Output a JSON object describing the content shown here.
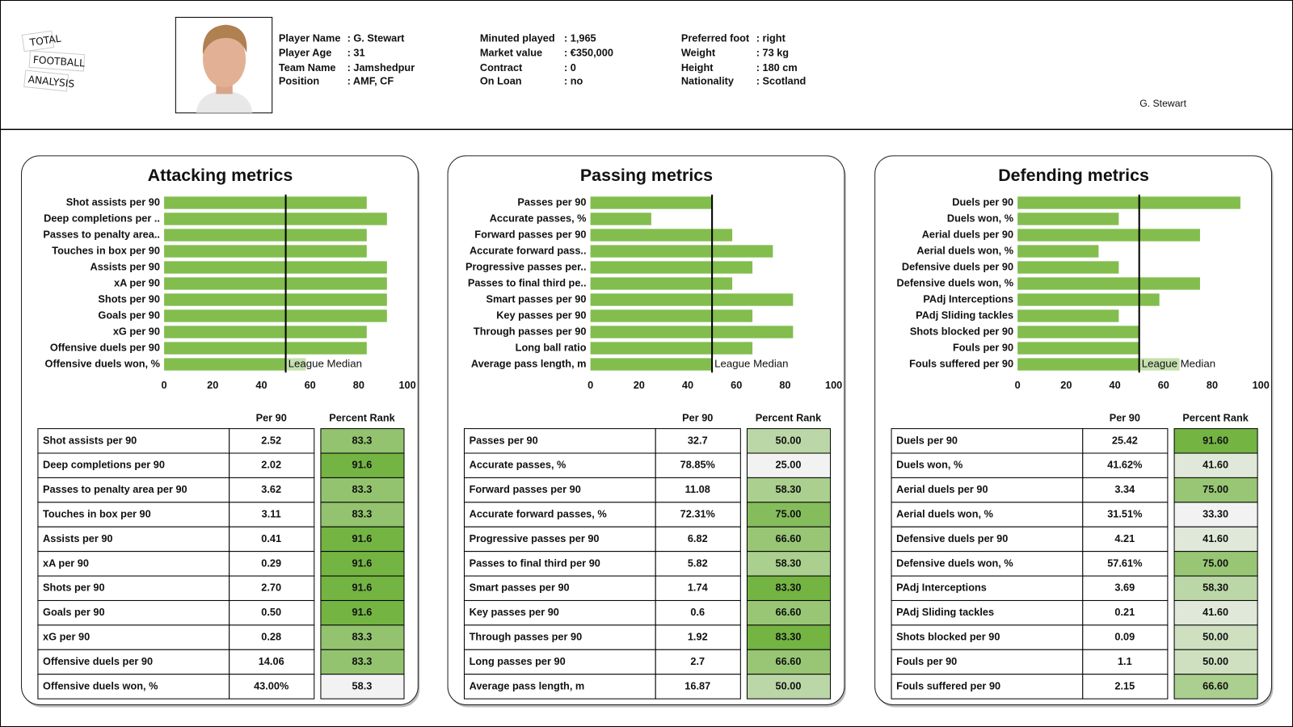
{
  "header": {
    "logo": [
      "TOTAL",
      "FOOTBALL",
      "ANALYSIS"
    ],
    "info": [
      [
        {
          "label": "Player Name",
          "value": ": G. Stewart"
        },
        {
          "label": "Player Age",
          "value": ": 31"
        },
        {
          "label": "Team Name",
          "value": ": Jamshedpur"
        },
        {
          "label": "Position",
          "value": ": AMF, CF"
        }
      ],
      [
        {
          "label": "Minuted played",
          "value": ": 1,965"
        },
        {
          "label": "Market value",
          "value": ": €350,000"
        },
        {
          "label": "Contract",
          "value": ": 0"
        },
        {
          "label": "On Loan",
          "value": ": no"
        }
      ],
      [
        {
          "label": "Preferred foot",
          "value": ": right"
        },
        {
          "label": "Weight",
          "value": ": 73 kg"
        },
        {
          "label": "Height",
          "value": ": 180 cm"
        },
        {
          "label": "Nationality",
          "value": ": Scotland"
        }
      ]
    ],
    "caption": "G. Stewart"
  },
  "chart_data": [
    {
      "type": "bar",
      "orientation": "horizontal",
      "title": "Attacking metrics",
      "color": "#82bd4e",
      "categories": [
        "Shot assists per 90",
        "Deep completions per ..",
        "Passes to penalty area..",
        "Touches in box per 90",
        "Assists per 90",
        "xA per 90",
        "Shots per 90",
        "Goals per 90",
        "xG per 90",
        "Offensive duels per 90",
        "Offensive duels won, %"
      ],
      "values": [
        83.3,
        91.6,
        83.3,
        83.3,
        91.6,
        91.6,
        91.6,
        91.6,
        83.3,
        83.3,
        58.3
      ],
      "xlim": [
        0,
        100
      ],
      "xticks": [
        0,
        20,
        40,
        60,
        80,
        100
      ],
      "median": {
        "value": 50,
        "label": "League Median"
      }
    },
    {
      "type": "bar",
      "orientation": "horizontal",
      "title": "Passing metrics",
      "color": "#82bd4e",
      "categories": [
        "Passes per 90",
        "Accurate passes, %",
        "Forward passes per 90",
        "Accurate forward pass..",
        "Progressive passes per..",
        "Passes to final third pe..",
        "Smart passes per 90",
        "Key passes per 90",
        "Through passes per 90",
        "Long ball ratio",
        "Average pass length, m"
      ],
      "values": [
        50,
        25,
        58.3,
        75,
        66.6,
        58.3,
        83.3,
        66.6,
        83.3,
        66.6,
        50
      ],
      "xlim": [
        0,
        100
      ],
      "xticks": [
        0,
        20,
        40,
        60,
        80,
        100
      ],
      "median": {
        "value": 50,
        "label": "League Median"
      }
    },
    {
      "type": "bar",
      "orientation": "horizontal",
      "title": "Defending metrics",
      "color": "#82bd4e",
      "categories": [
        "Duels per 90",
        "Duels won, %",
        "Aerial duels per 90",
        "Aerial duels won, %",
        "Defensive duels per 90",
        "Defensive duels won, %",
        "PAdj Interceptions",
        "PAdj Sliding tackles",
        "Shots blocked per 90",
        "Fouls per 90",
        "Fouls suffered per 90"
      ],
      "values": [
        91.6,
        41.6,
        75,
        33.3,
        41.6,
        75,
        58.3,
        41.6,
        50,
        50,
        66.6
      ],
      "xlim": [
        0,
        100
      ],
      "xticks": [
        0,
        20,
        40,
        60,
        80,
        100
      ],
      "median": {
        "value": 50,
        "label": "League Median"
      }
    }
  ],
  "tables": [
    {
      "columns": [
        "Per 90",
        "Percent Rank"
      ],
      "rows": [
        [
          "Shot assists per 90",
          "2.52",
          "83.3"
        ],
        [
          "Deep completions per 90",
          "2.02",
          "91.6"
        ],
        [
          "Passes to penalty area per 90",
          "3.62",
          "83.3"
        ],
        [
          "Touches in box per 90",
          "3.11",
          "83.3"
        ],
        [
          "Assists per 90",
          "0.41",
          "91.6"
        ],
        [
          "xA per 90",
          "0.29",
          "91.6"
        ],
        [
          "Shots per 90",
          "2.70",
          "91.6"
        ],
        [
          "Goals per 90",
          "0.50",
          "91.6"
        ],
        [
          "xG per 90",
          "0.28",
          "83.3"
        ],
        [
          "Offensive duels per 90",
          "14.06",
          "83.3"
        ],
        [
          "Offensive duels won, %",
          "43.00%",
          "58.3"
        ]
      ]
    },
    {
      "columns": [
        "Per 90",
        "Percent Rank"
      ],
      "rows": [
        [
          "Passes per 90",
          "32.7",
          "50.00"
        ],
        [
          "Accurate passes, %",
          "78.85%",
          "25.00"
        ],
        [
          "Forward passes per 90",
          "11.08",
          "58.30"
        ],
        [
          "Accurate forward passes, %",
          "72.31%",
          "75.00"
        ],
        [
          "Progressive passes per 90",
          "6.82",
          "66.60"
        ],
        [
          "Passes to final third per 90",
          "5.82",
          "58.30"
        ],
        [
          "Smart passes per 90",
          "1.74",
          "83.30"
        ],
        [
          "Key passes per 90",
          "0.6",
          "66.60"
        ],
        [
          "Through passes per 90",
          "1.92",
          "83.30"
        ],
        [
          "Long passes per 90",
          "2.7",
          "66.60"
        ],
        [
          "Average pass length, m",
          "16.87",
          "50.00"
        ]
      ]
    },
    {
      "columns": [
        "Per 90",
        "Percent Rank"
      ],
      "rows": [
        [
          "Duels per 90",
          "25.42",
          "91.60"
        ],
        [
          "Duels won, %",
          "41.62%",
          "41.60"
        ],
        [
          "Aerial duels per 90",
          "3.34",
          "75.00"
        ],
        [
          "Aerial duels won, %",
          "31.51%",
          "33.30"
        ],
        [
          "Defensive duels per 90",
          "4.21",
          "41.60"
        ],
        [
          "Defensive duels won, %",
          "57.61%",
          "75.00"
        ],
        [
          "PAdj Interceptions",
          "3.69",
          "58.30"
        ],
        [
          "PAdj Sliding tackles",
          "0.21",
          "41.60"
        ],
        [
          "Shots blocked per 90",
          "0.09",
          "50.00"
        ],
        [
          "Fouls per 90",
          "1.1",
          "50.00"
        ],
        [
          "Fouls suffered per 90",
          "2.15",
          "66.60"
        ]
      ]
    }
  ]
}
